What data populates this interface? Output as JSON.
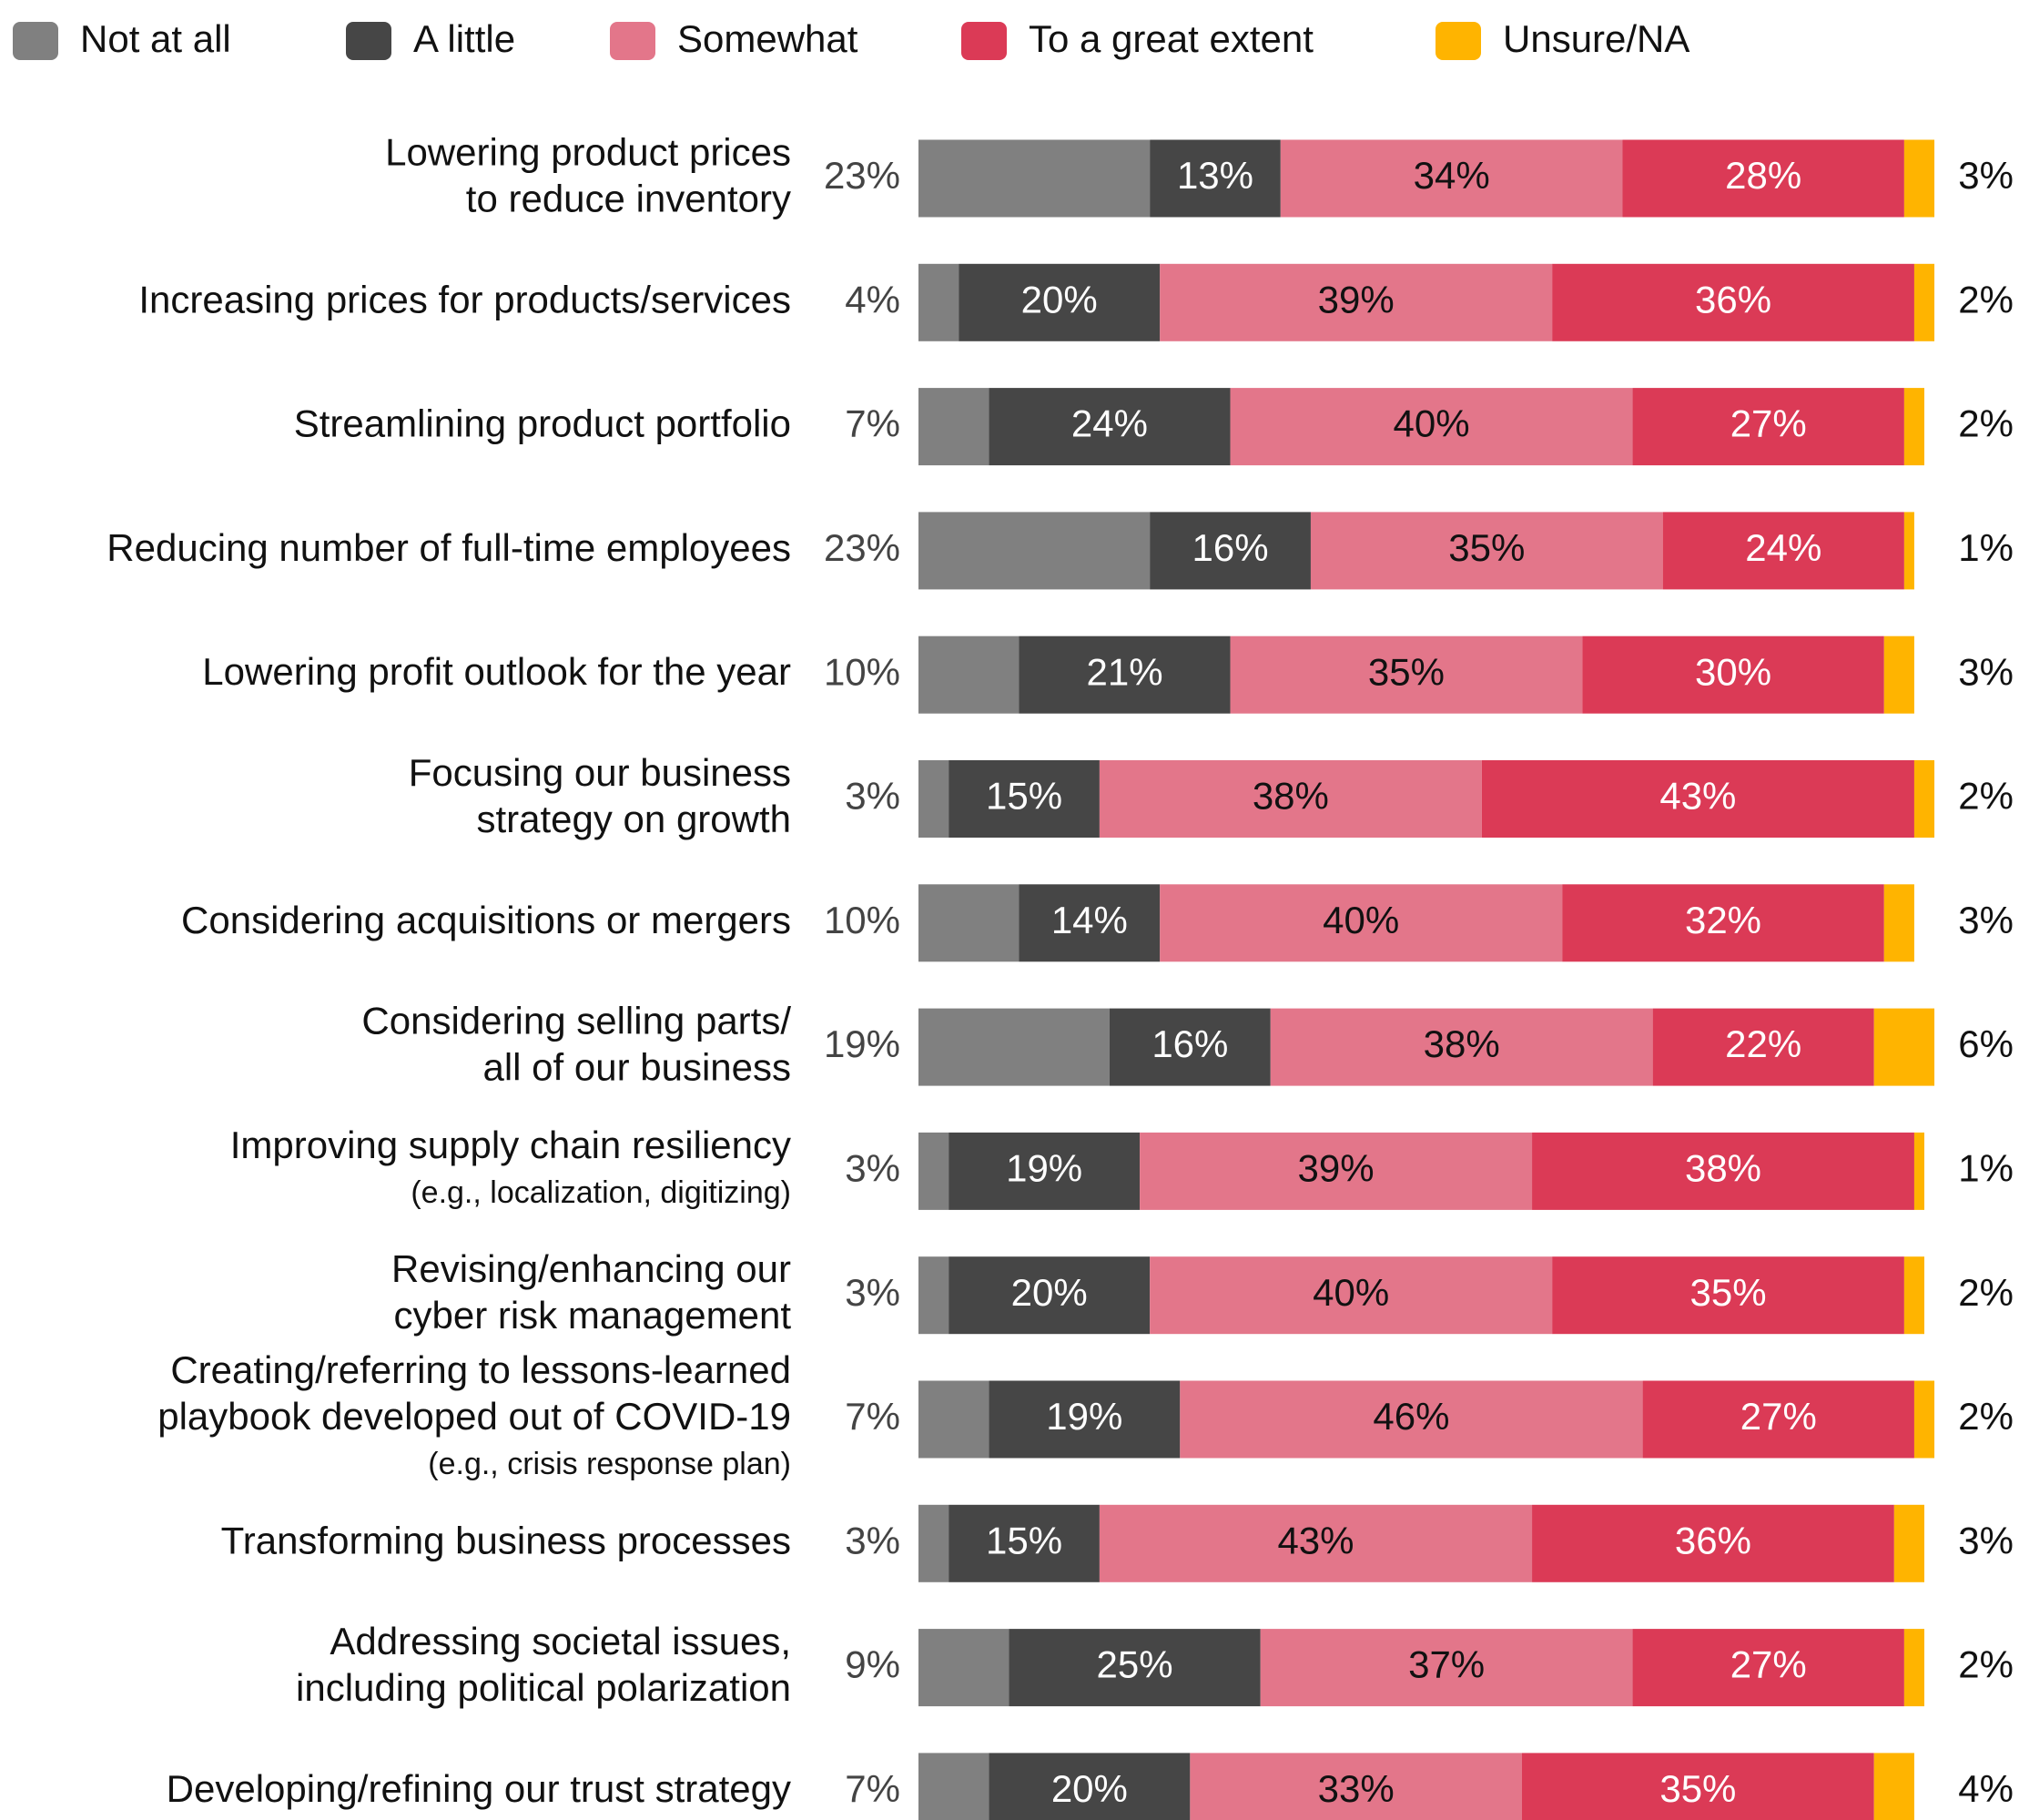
{
  "chart_data": {
    "type": "stacked-bar-horizontal",
    "categories": [
      "Lowering product prices\nto reduce inventory",
      "Increasing prices for products/services",
      "Streamlining product portfolio",
      "Reducing number of full-time employees",
      "Lowering profit outlook for the year",
      "Focusing our business\nstrategy on growth",
      "Considering acquisitions or mergers",
      "Considering selling parts/\nall of our business",
      "Improving supply chain resiliency\n(e.g., localization, digitizing)",
      "Revising/enhancing our\ncyber risk management",
      "Creating/referring to lessons-learned\nplaybook developed out of COVID-19\n(e.g., crisis response plan)",
      "Transforming business processes",
      "Addressing societal issues,\nincluding political polarization",
      "Developing/refining our trust strategy"
    ],
    "series": [
      {
        "name": "Not at all",
        "color": "#808080",
        "values": [
          23,
          4,
          7,
          23,
          10,
          3,
          10,
          19,
          3,
          3,
          7,
          3,
          9,
          7
        ],
        "value_labels": [
          "23%",
          "4%",
          "7%",
          "23%",
          "10%",
          "3%",
          "10%",
          "19%",
          "3%",
          "3%",
          "7%",
          "3%",
          "9%",
          "7%"
        ]
      },
      {
        "name": "A little",
        "color": "#464646",
        "values": [
          13,
          20,
          24,
          16,
          21,
          15,
          14,
          16,
          19,
          20,
          19,
          15,
          25,
          20
        ],
        "value_labels": [
          "13%",
          "20%",
          "24%",
          "16%",
          "21%",
          "15%",
          "14%",
          "16%",
          "19%",
          "20%",
          "19%",
          "15%",
          "25%",
          "20%"
        ]
      },
      {
        "name": "Somewhat",
        "color": "#e3768a",
        "values": [
          34,
          39,
          40,
          35,
          35,
          38,
          40,
          38,
          39,
          40,
          46,
          43,
          37,
          33
        ],
        "value_labels": [
          "34%",
          "39%",
          "40%",
          "35%",
          "35%",
          "38%",
          "40%",
          "38%",
          "39%",
          "40%",
          "46%",
          "43%",
          "37%",
          "33%"
        ]
      },
      {
        "name": "To a great extent",
        "color": "#db3a56",
        "values": [
          28,
          36,
          27,
          24,
          30,
          43,
          32,
          22,
          38,
          35,
          27,
          36,
          27,
          35
        ],
        "value_labels": [
          "28%",
          "36%",
          "27%",
          "24%",
          "30%",
          "43%",
          "32%",
          "22%",
          "38%",
          "35%",
          "27%",
          "36%",
          "27%",
          "35%"
        ]
      },
      {
        "name": "Unsure/NA",
        "color": "#ffb400",
        "values": [
          3,
          2,
          2,
          1,
          3,
          2,
          3,
          6,
          1,
          2,
          2,
          3,
          2,
          4
        ],
        "value_labels": [
          "3%",
          "2%",
          "2%",
          "1%",
          "3%",
          "2%",
          "3%",
          "6%",
          "1%",
          "2%",
          "2%",
          "3%",
          "2%",
          "4%"
        ]
      }
    ]
  }
}
